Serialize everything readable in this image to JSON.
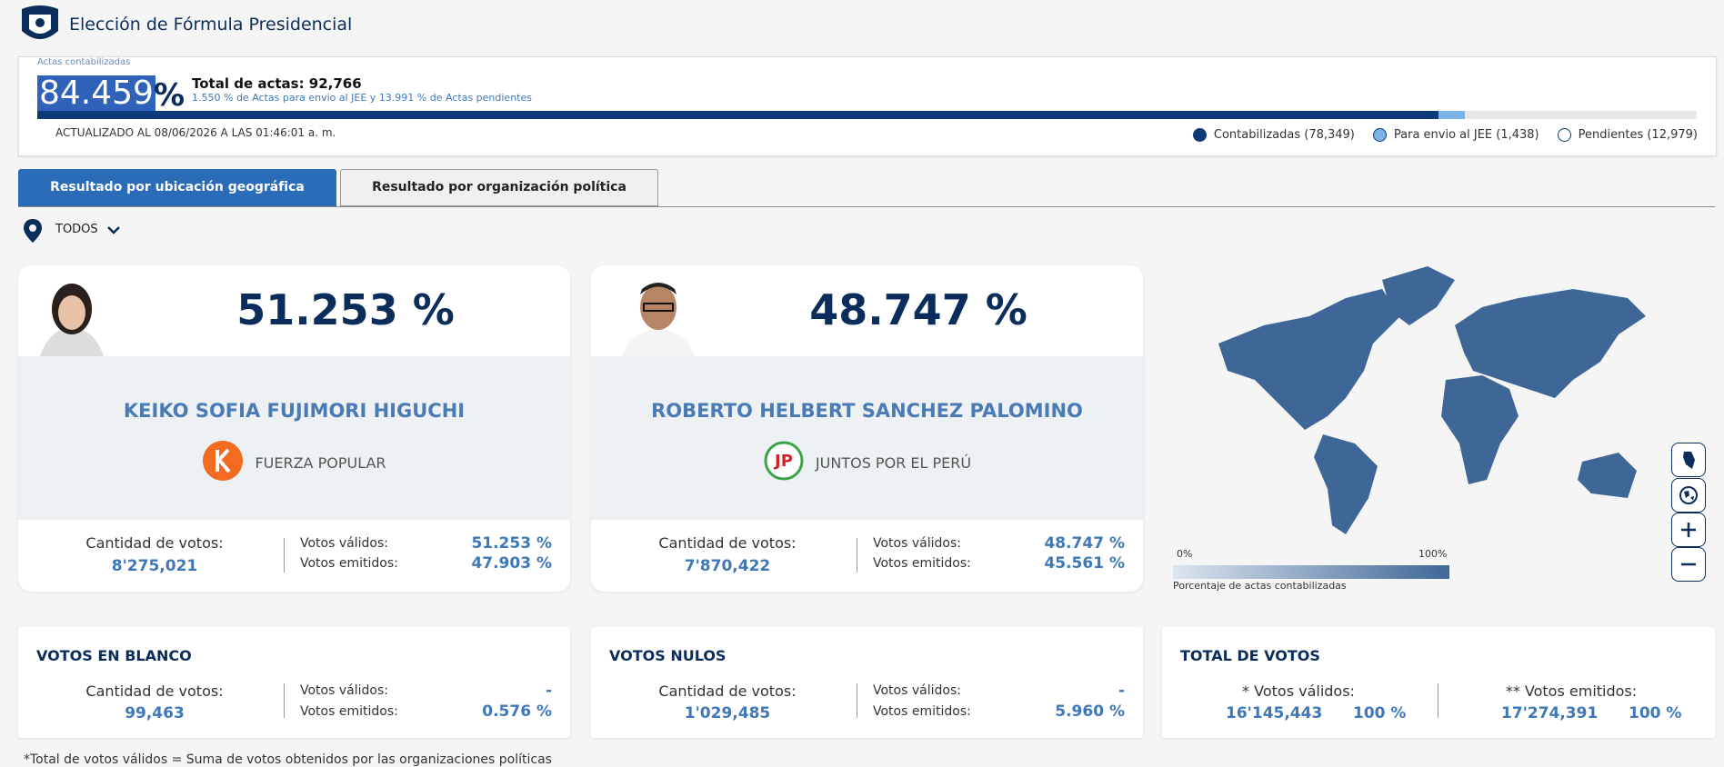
{
  "header": {
    "title": "Elección de Fórmula Presidencial"
  },
  "progress": {
    "label": "Actas contabilizadas",
    "percent": "84.459",
    "percent_sign": "%",
    "total": "Total de actas: 92,766",
    "jee_percent": "1.550",
    "jee_text": " % de Actas para envio al JEE y ",
    "pending_percent": "13.991",
    "pending_text": " % de Actas pendientes",
    "updated": "ACTUALIZADO AL 08/06/2026 A LAS 01:46:01 a. m.",
    "legend": [
      "Contabilizadas (78,349)",
      "Para envio al JEE (1,438)",
      "Pendientes (12,979)"
    ]
  },
  "tabs": [
    "Resultado por ubicación geográfica",
    "Resultado por organización política"
  ],
  "filter": "TODOS",
  "candidates": [
    {
      "percent": "51.253 %",
      "name": "KEIKO SOFIA FUJIMORI HIGUCHI",
      "party": "FUERZA POPULAR",
      "votes_label": "Cantidad de votos:",
      "votes": "8'275,021",
      "valid_label": "Votos válidos:",
      "valid": "51.253 %",
      "emitted_label": "Votos emitidos:",
      "emitted": "47.903 %"
    },
    {
      "percent": "48.747 %",
      "name": "ROBERTO HELBERT SANCHEZ PALOMINO",
      "party": "JUNTOS POR EL PERÚ",
      "votes_label": "Cantidad de votos:",
      "votes": "7'870,422",
      "valid_label": "Votos válidos:",
      "valid": "48.747 %",
      "emitted_label": "Votos emitidos:",
      "emitted": "45.561 %"
    }
  ],
  "map": {
    "min_label": "0%",
    "max_label": "100%",
    "caption": "Porcentaje de actas contabilizadas"
  },
  "summary": [
    {
      "title": "VOTOS EN BLANCO",
      "votes_label": "Cantidad de votos:",
      "votes": "99,463",
      "valid_label": "Votos válidos:",
      "valid": "-",
      "emitted_label": "Votos emitidos:",
      "emitted": "0.576 %"
    },
    {
      "title": "VOTOS NULOS",
      "votes_label": "Cantidad de votos:",
      "votes": "1'029,485",
      "valid_label": "Votos válidos:",
      "valid": "-",
      "emitted_label": "Votos emitidos:",
      "emitted": "5.960 %"
    }
  ],
  "total": {
    "title": "TOTAL DE VOTOS",
    "valid_label": "* Votos válidos:",
    "valid_votes": "16'145,443",
    "valid_pct": "100 %",
    "emitted_label": "** Votos emitidos:",
    "emitted_votes": "17'274,391",
    "emitted_pct": "100 %"
  },
  "footnote": "*Total de votos válidos = Suma de votos obtenidos por las organizaciones políticas"
}
